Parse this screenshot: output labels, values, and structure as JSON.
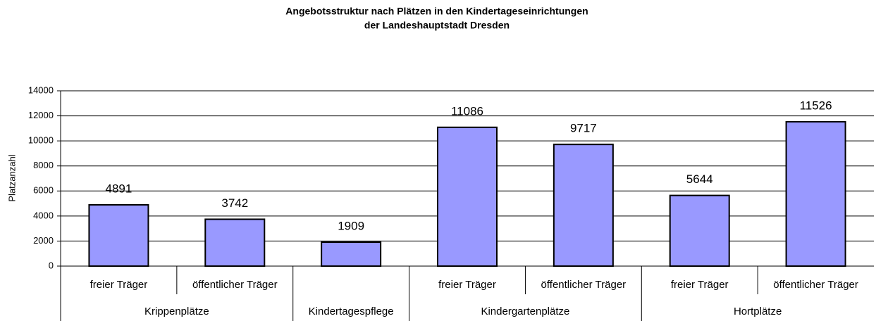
{
  "chart_data": {
    "type": "bar",
    "title": [
      "Angebotsstruktur nach Plätzen in den Kindertageseinrichtungen",
      "der Landeshauptstadt Dresden"
    ],
    "y_label": "Platzanzahl",
    "groups": [
      {
        "label": "Krippenplätze",
        "categories": [
          "freier Träger",
          "öffentlicher Träger"
        ]
      },
      {
        "label": "Kindertagespflege",
        "categories": [
          null
        ]
      },
      {
        "label": "Kindergartenplätze",
        "categories": [
          "freier Träger",
          "öffentlicher Träger"
        ]
      },
      {
        "label": "Hortplätze",
        "categories": [
          "freier Träger",
          "öffentlicher Träger"
        ]
      }
    ],
    "values": [
      4891,
      3742,
      1909,
      11086,
      9717,
      5644,
      11526
    ],
    "color": "#9999ff",
    "ylim": [
      0,
      14000
    ],
    "yticks": [
      0,
      2000,
      4000,
      6000,
      8000,
      10000,
      12000,
      14000
    ],
    "grid": true
  }
}
